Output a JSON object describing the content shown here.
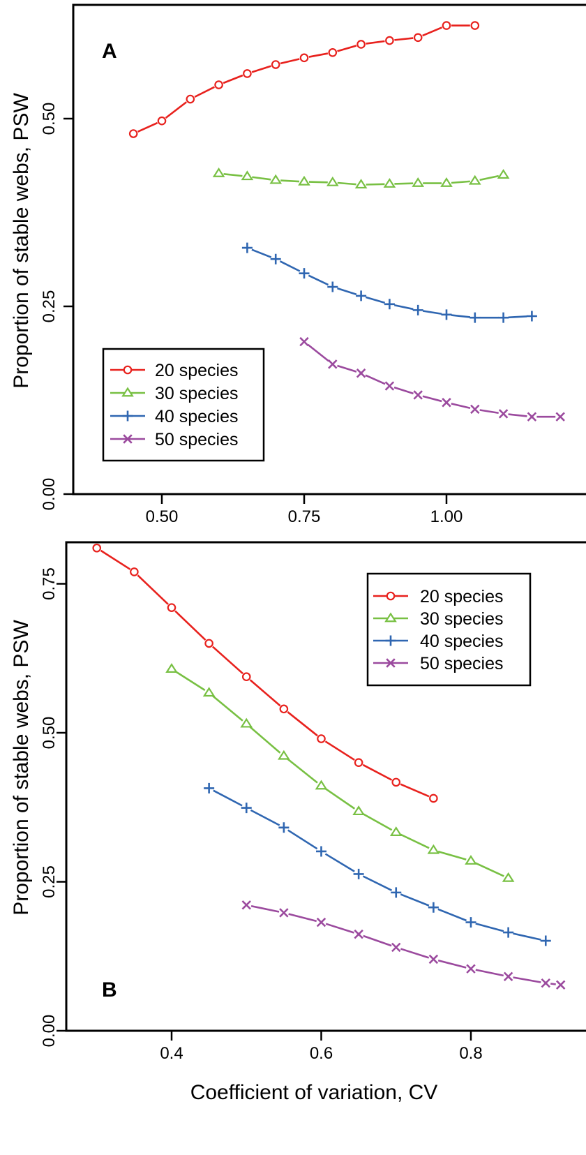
{
  "chart_data": [
    {
      "type": "line",
      "panel_label": "A",
      "ylabel": "Proportion of stable webs, PSW",
      "xlabel": "",
      "xlim": [
        0.35,
        1.2
      ],
      "ylim": [
        0.0,
        0.62
      ],
      "xticks": [
        0.5,
        0.75,
        1.0
      ],
      "xtick_labels": [
        "0.50",
        "0.75",
        "1.00"
      ],
      "yticks": [
        0.0,
        0.25,
        0.5
      ],
      "ytick_labels": [
        "0.00",
        "0.25",
        "0.50"
      ],
      "legend_position": "bottom-left",
      "series": [
        {
          "name": "20 species",
          "color": "#e8211d",
          "marker": "circle",
          "x": [
            0.45,
            0.5,
            0.55,
            0.6,
            0.65,
            0.7,
            0.75,
            0.8,
            0.85,
            0.9,
            0.95,
            1.0,
            1.05
          ],
          "y": [
            0.48,
            0.497,
            0.526,
            0.545,
            0.56,
            0.572,
            0.581,
            0.588,
            0.599,
            0.604,
            0.608,
            0.624,
            0.624
          ]
        },
        {
          "name": "30 species",
          "color": "#78c043",
          "marker": "triangle",
          "x": [
            0.6,
            0.65,
            0.7,
            0.75,
            0.8,
            0.85,
            0.9,
            0.95,
            1.0,
            1.05,
            1.1
          ],
          "y": [
            0.427,
            0.423,
            0.418,
            0.416,
            0.415,
            0.412,
            0.413,
            0.414,
            0.414,
            0.417,
            0.425
          ]
        },
        {
          "name": "40 species",
          "color": "#2f66b1",
          "marker": "plus",
          "x": [
            0.65,
            0.7,
            0.75,
            0.8,
            0.85,
            0.9,
            0.95,
            1.0,
            1.05,
            1.1,
            1.15
          ],
          "y": [
            0.328,
            0.313,
            0.294,
            0.276,
            0.264,
            0.253,
            0.245,
            0.239,
            0.235,
            0.235,
            0.237
          ]
        },
        {
          "name": "50 species",
          "color": "#9b4a9e",
          "marker": "x",
          "x": [
            0.75,
            0.8,
            0.85,
            0.9,
            0.95,
            1.0,
            1.05,
            1.1,
            1.15,
            1.2
          ],
          "y": [
            0.203,
            0.173,
            0.161,
            0.144,
            0.132,
            0.122,
            0.113,
            0.107,
            0.103,
            0.103
          ]
        }
      ]
    },
    {
      "type": "line",
      "panel_label": "B",
      "ylabel": "Proportion of stable webs, PSW",
      "xlabel": "Coefficient of variation, CV",
      "xlim": [
        0.27,
        0.92
      ],
      "ylim": [
        0.0,
        0.83
      ],
      "xticks": [
        0.4,
        0.6,
        0.8
      ],
      "xtick_labels": [
        "0.4",
        "0.6",
        "0.8"
      ],
      "yticks": [
        0.0,
        0.25,
        0.5,
        0.75
      ],
      "ytick_labels": [
        "0.00",
        "0.25",
        "0.50",
        "0.75"
      ],
      "legend_position": "top-right",
      "series": [
        {
          "name": "20 species",
          "color": "#e8211d",
          "marker": "circle",
          "x": [
            0.3,
            0.35,
            0.4,
            0.45,
            0.5,
            0.55,
            0.6,
            0.65,
            0.7,
            0.75
          ],
          "y": [
            0.81,
            0.77,
            0.71,
            0.65,
            0.594,
            0.54,
            0.49,
            0.45,
            0.417,
            0.39
          ]
        },
        {
          "name": "30 species",
          "color": "#78c043",
          "marker": "triangle",
          "x": [
            0.4,
            0.45,
            0.5,
            0.55,
            0.6,
            0.65,
            0.7,
            0.75,
            0.8,
            0.85
          ],
          "y": [
            0.607,
            0.567,
            0.515,
            0.461,
            0.411,
            0.368,
            0.333,
            0.303,
            0.285,
            0.256
          ]
        },
        {
          "name": "40 species",
          "color": "#2f66b1",
          "marker": "plus",
          "x": [
            0.45,
            0.5,
            0.55,
            0.6,
            0.65,
            0.7,
            0.75,
            0.8,
            0.85,
            0.9
          ],
          "y": [
            0.407,
            0.374,
            0.341,
            0.301,
            0.263,
            0.232,
            0.207,
            0.182,
            0.165,
            0.151
          ]
        },
        {
          "name": "50 species",
          "color": "#9b4a9e",
          "marker": "x",
          "x": [
            0.5,
            0.55,
            0.6,
            0.65,
            0.7,
            0.75,
            0.8,
            0.85,
            0.9,
            0.92
          ],
          "y": [
            0.211,
            0.198,
            0.182,
            0.162,
            0.14,
            0.12,
            0.104,
            0.091,
            0.08,
            0.077
          ]
        }
      ]
    }
  ]
}
